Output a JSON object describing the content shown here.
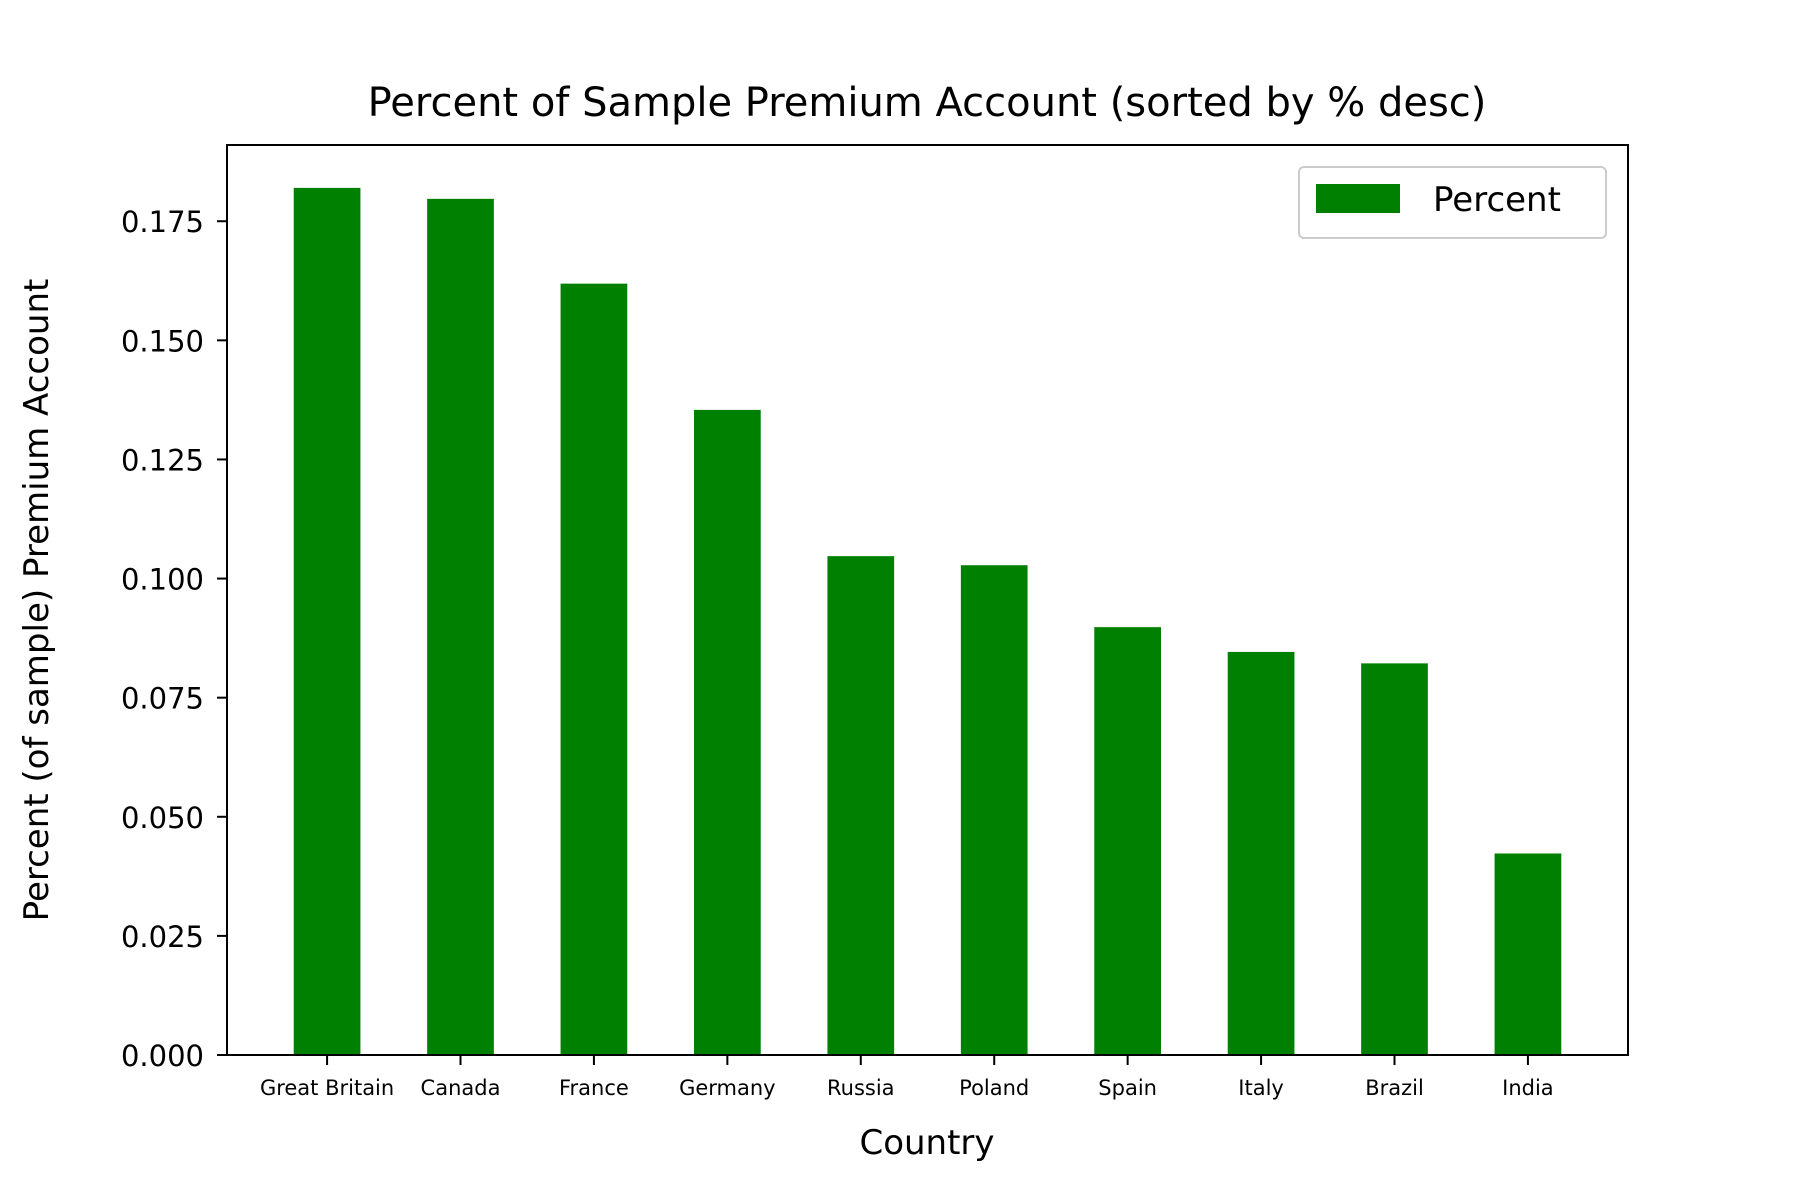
{
  "chart_data": {
    "type": "bar",
    "title": "Percent of Sample Premium Account (sorted by % desc)",
    "xlabel": "Country",
    "ylabel": "Percent (of sample) Premium Account",
    "categories": [
      "Great Britain",
      "Canada",
      "France",
      "Germany",
      "Russia",
      "Poland",
      "Spain",
      "Italy",
      "Brazil",
      "India"
    ],
    "series": [
      {
        "name": "Percent",
        "values": [
          0.182,
          0.1797,
          0.1619,
          0.1354,
          0.1047,
          0.1028,
          0.0898,
          0.0846,
          0.0822,
          0.0423
        ]
      }
    ],
    "ylim": [
      0,
      0.191
    ],
    "yticks": [
      "0.000",
      "0.025",
      "0.050",
      "0.075",
      "0.100",
      "0.125",
      "0.150",
      "0.175"
    ],
    "legend": {
      "placement": "top-right",
      "label": "Percent"
    },
    "bar_color": "#008000",
    "grid": false
  }
}
